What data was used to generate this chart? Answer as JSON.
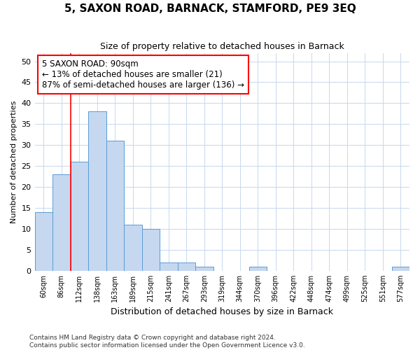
{
  "title": "5, SAXON ROAD, BARNACK, STAMFORD, PE9 3EQ",
  "subtitle": "Size of property relative to detached houses in Barnack",
  "xlabel": "Distribution of detached houses by size in Barnack",
  "ylabel": "Number of detached properties",
  "categories": [
    "60sqm",
    "86sqm",
    "112sqm",
    "138sqm",
    "163sqm",
    "189sqm",
    "215sqm",
    "241sqm",
    "267sqm",
    "293sqm",
    "319sqm",
    "344sqm",
    "370sqm",
    "396sqm",
    "422sqm",
    "448sqm",
    "474sqm",
    "499sqm",
    "525sqm",
    "551sqm",
    "577sqm"
  ],
  "values": [
    14,
    23,
    26,
    38,
    31,
    11,
    10,
    2,
    2,
    1,
    0,
    0,
    1,
    0,
    0,
    0,
    0,
    0,
    0,
    0,
    1
  ],
  "bar_color": "#c5d8f0",
  "bar_edge_color": "#5b9bd5",
  "vline_x_index": 1.5,
  "annotation_text_line1": "5 SAXON ROAD: 90sqm",
  "annotation_text_line2": "← 13% of detached houses are smaller (21)",
  "annotation_text_line3": "87% of semi-detached houses are larger (136) →",
  "ylim": [
    0,
    52
  ],
  "yticks": [
    0,
    5,
    10,
    15,
    20,
    25,
    30,
    35,
    40,
    45,
    50
  ],
  "footer_line1": "Contains HM Land Registry data © Crown copyright and database right 2024.",
  "footer_line2": "Contains public sector information licensed under the Open Government Licence v3.0.",
  "background_color": "#ffffff",
  "grid_color": "#c8d8ee"
}
